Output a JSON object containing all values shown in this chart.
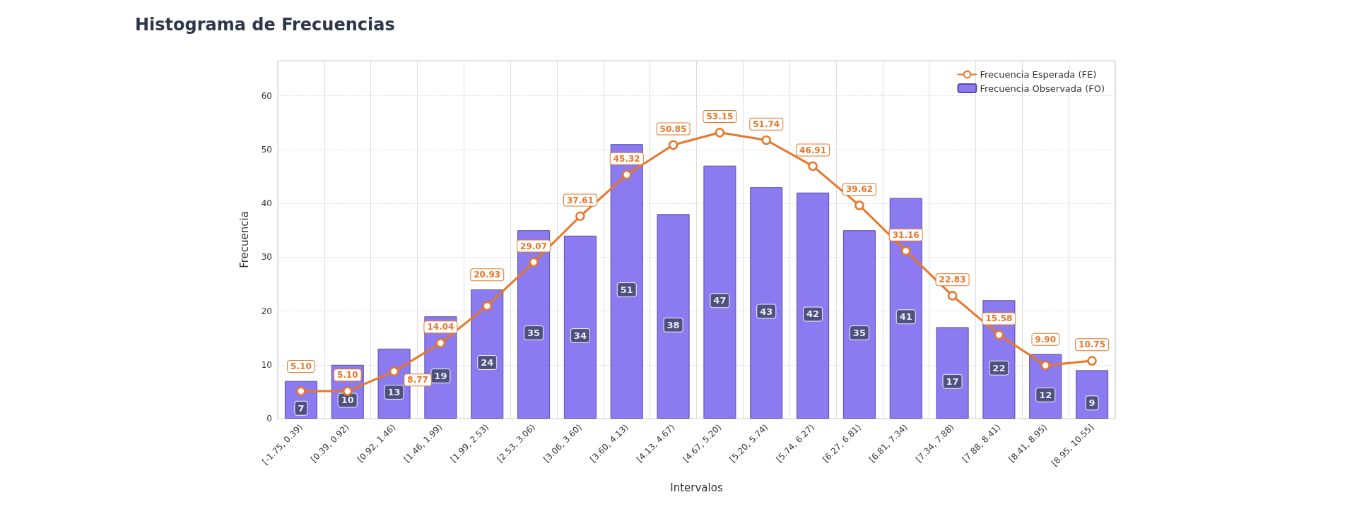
{
  "chart_data": {
    "type": "bar",
    "title": "Histograma de Frecuencias",
    "xlabel": "Intervalos",
    "ylabel": "Frecuencia",
    "categories": [
      "[-1.75, 0.39)",
      "[0.39, 0.92)",
      "[0.92, 1.46)",
      "[1.46, 1.99)",
      "[1.99, 2.53)",
      "[2.53, 3.06)",
      "[3.06, 3.60)",
      "[3.60, 4.13)",
      "[4.13, 4.67)",
      "[4.67, 5.20)",
      "[5.20, 5.74)",
      "[5.74, 6.27)",
      "[6.27, 6.81)",
      "[6.81, 7.34)",
      "[7.34, 7.88)",
      "[7.88, 8.41)",
      "[8.41, 8.95)",
      "[8.95, 10.55]"
    ],
    "series": [
      {
        "type": "bar",
        "name": "Frecuencia Observada (FO)",
        "color": "#7b68ee",
        "values": [
          7,
          10,
          13,
          19,
          24,
          35,
          34,
          51,
          38,
          47,
          43,
          42,
          35,
          41,
          17,
          22,
          12,
          9
        ],
        "value_labels": [
          "7",
          "10",
          "13",
          "19",
          "24",
          "35",
          "34",
          "51",
          "38",
          "47",
          "43",
          "42",
          "35",
          "41",
          "17",
          "22",
          "12",
          "9"
        ]
      },
      {
        "type": "line",
        "name": "Frecuencia Esperada (FE)",
        "color": "#e8772a",
        "marker": "circle",
        "values": [
          5.1,
          5.1,
          8.77,
          14.04,
          20.93,
          29.07,
          37.61,
          45.32,
          50.85,
          53.15,
          51.74,
          46.91,
          39.62,
          31.16,
          22.83,
          15.58,
          9.9,
          10.75
        ],
        "value_labels": [
          "5.10",
          "5.10",
          "8.77",
          "14.04",
          "20.93",
          "29.07",
          "37.61",
          "45.32",
          "50.85",
          "53.15",
          "51.74",
          "46.91",
          "39.62",
          "31.16",
          "22.83",
          "15.58",
          "9.90",
          "10.75"
        ]
      }
    ],
    "ylim": [
      0,
      66.5
    ],
    "yticks": [
      0,
      10,
      20,
      30,
      40,
      50,
      60
    ],
    "grid": true,
    "legend": "top right"
  }
}
